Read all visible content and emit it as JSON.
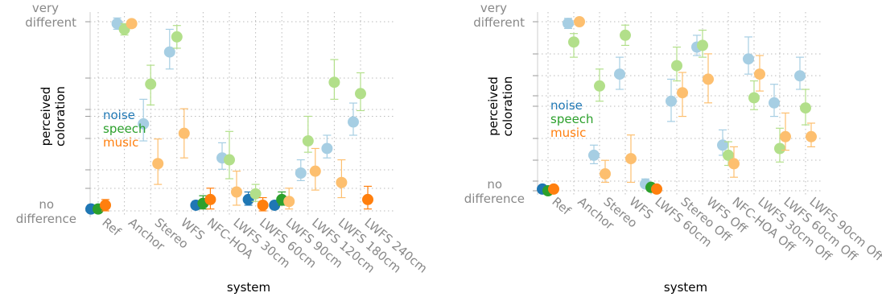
{
  "colors": {
    "noise": "#1f77b4",
    "noise_light": "#a6cee3",
    "speech": "#2ca02c",
    "speech_light": "#b2df8a",
    "music": "#ff7f0e",
    "music_light": "#fdbf6f",
    "axis_text": "#888888",
    "grid": "#bbbbbb"
  },
  "chart_data": [
    {
      "type": "scatter",
      "xlabel": "system",
      "ylabel": "perceived coloration",
      "ytick_top": "very different",
      "ytick_bottom": "no difference",
      "ylim": [
        0,
        1
      ],
      "grid": true,
      "legend_placement": "left-middle",
      "categories": [
        "Ref",
        "Anchor",
        "Stereo",
        "WFS",
        "NFC-HOA",
        "LWFS 30cm",
        "LWFS 60cm",
        "LWFS 90cm",
        "LWFS 120cm",
        "LWFS 180cm",
        "LWFS 240cm"
      ],
      "series": [
        {
          "name": "noise",
          "highlight": [
            true,
            false,
            false,
            false,
            true,
            false,
            true,
            true,
            false,
            false,
            false
          ],
          "values": [
            0.01,
            0.99,
            0.46,
            0.84,
            0.03,
            0.28,
            0.06,
            0.03,
            0.2,
            0.33,
            0.47
          ],
          "err_low": [
            0.01,
            0.03,
            0.09,
            0.09,
            0.02,
            0.06,
            0.03,
            0.02,
            0.04,
            0.05,
            0.07
          ],
          "err_high": [
            0.02,
            0.03,
            0.13,
            0.12,
            0.02,
            0.08,
            0.04,
            0.02,
            0.07,
            0.07,
            0.1
          ]
        },
        {
          "name": "speech",
          "highlight": [
            true,
            false,
            false,
            false,
            true,
            false,
            false,
            true,
            false,
            false,
            false
          ],
          "values": [
            0.01,
            0.96,
            0.67,
            0.92,
            0.04,
            0.27,
            0.09,
            0.06,
            0.37,
            0.68,
            0.62
          ],
          "err_low": [
            0.01,
            0.03,
            0.11,
            0.06,
            0.03,
            0.1,
            0.04,
            0.03,
            0.06,
            0.09,
            0.09
          ],
          "err_high": [
            0.02,
            0.03,
            0.1,
            0.06,
            0.04,
            0.15,
            0.05,
            0.04,
            0.13,
            0.12,
            0.11
          ]
        },
        {
          "name": "music",
          "highlight": [
            true,
            false,
            false,
            false,
            true,
            false,
            true,
            false,
            false,
            false,
            true
          ],
          "values": [
            0.03,
            0.99,
            0.25,
            0.41,
            0.06,
            0.1,
            0.03,
            0.05,
            0.21,
            0.15,
            0.06
          ],
          "err_low": [
            0.03,
            0.02,
            0.11,
            0.13,
            0.05,
            0.07,
            0.03,
            0.04,
            0.1,
            0.08,
            0.05
          ],
          "err_high": [
            0.03,
            0.01,
            0.13,
            0.13,
            0.06,
            0.11,
            0.04,
            0.07,
            0.12,
            0.12,
            0.07
          ]
        }
      ]
    },
    {
      "type": "scatter",
      "xlabel": "system",
      "ylabel": "perceived coloration",
      "ytick_top": "very different",
      "ytick_bottom": "no difference",
      "ylim": [
        0,
        1
      ],
      "grid": true,
      "legend_placement": "left-middle",
      "categories": [
        "Ref",
        "Anchor",
        "Stereo",
        "WFS",
        "LWFS 60cm",
        "Stereo Off",
        "WFS Off",
        "NFC-HOA Off",
        "LWFS 30cm Off",
        "LWFS 60cm Off",
        "LWFS 90cm Off"
      ],
      "series": [
        {
          "name": "noise",
          "highlight": [
            true,
            false,
            false,
            false,
            false,
            false,
            false,
            false,
            false,
            false,
            false
          ],
          "values": [
            0.01,
            0.99,
            0.21,
            0.69,
            0.04,
            0.53,
            0.85,
            0.27,
            0.78,
            0.52,
            0.68
          ],
          "err_low": [
            0.01,
            0.03,
            0.05,
            0.09,
            0.02,
            0.12,
            0.05,
            0.06,
            0.09,
            0.08,
            0.08
          ],
          "err_high": [
            0.02,
            0.03,
            0.06,
            0.1,
            0.03,
            0.13,
            0.07,
            0.09,
            0.13,
            0.11,
            0.11
          ]
        },
        {
          "name": "speech",
          "highlight": [
            true,
            false,
            false,
            false,
            true,
            false,
            false,
            false,
            false,
            false,
            false
          ],
          "values": [
            0.0,
            0.88,
            0.62,
            0.92,
            0.02,
            0.74,
            0.86,
            0.21,
            0.55,
            0.25,
            0.49
          ],
          "err_low": [
            0.01,
            0.09,
            0.09,
            0.06,
            0.02,
            0.09,
            0.07,
            0.06,
            0.07,
            0.08,
            0.1
          ],
          "err_high": [
            0.01,
            0.05,
            0.1,
            0.06,
            0.02,
            0.11,
            0.09,
            0.08,
            0.1,
            0.12,
            0.11
          ]
        },
        {
          "name": "music",
          "highlight": [
            true,
            false,
            false,
            false,
            true,
            false,
            false,
            false,
            false,
            false,
            false
          ],
          "values": [
            0.01,
            1.0,
            0.1,
            0.19,
            0.01,
            0.58,
            0.66,
            0.16,
            0.69,
            0.32,
            0.32
          ],
          "err_low": [
            0.01,
            0.02,
            0.05,
            0.14,
            0.01,
            0.14,
            0.14,
            0.08,
            0.1,
            0.08,
            0.06
          ],
          "err_high": [
            0.01,
            0.01,
            0.08,
            0.14,
            0.02,
            0.12,
            0.15,
            0.1,
            0.11,
            0.14,
            0.08
          ]
        }
      ]
    }
  ]
}
